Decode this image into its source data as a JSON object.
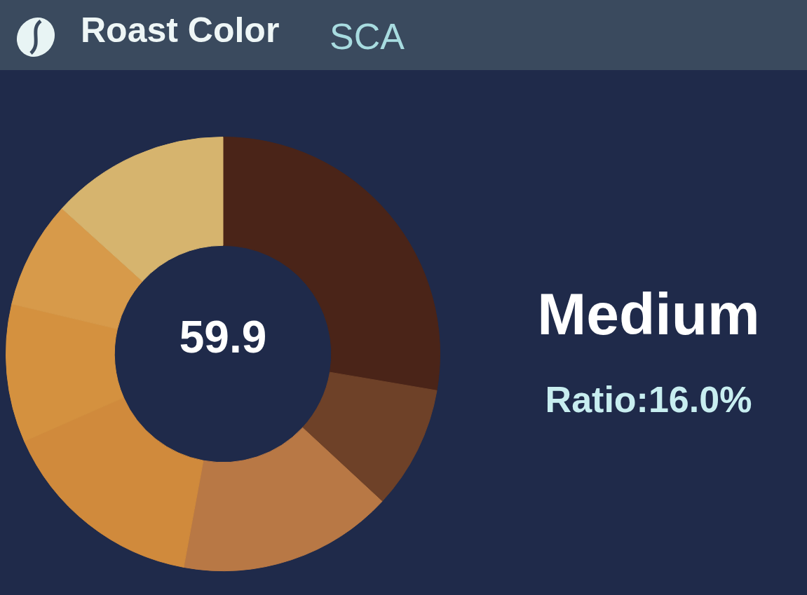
{
  "chart_data": {
    "type": "donut",
    "title": "Roast Color",
    "subtitle": "SCA",
    "categories": [
      null,
      null,
      null,
      null,
      null,
      null,
      null
    ],
    "values": [
      27.7,
      9.2,
      16.0,
      15.5,
      10.3,
      8.0,
      13.3
    ],
    "colors": [
      "#4a2418",
      "#6e4128",
      "#b87845",
      "#d08a3c",
      "#d4913f",
      "#d79a4a",
      "#d6b46e"
    ],
    "annotations": [
      "59.9",
      "Medium",
      "Ratio:16.0%"
    ],
    "legend": false
  }
}
